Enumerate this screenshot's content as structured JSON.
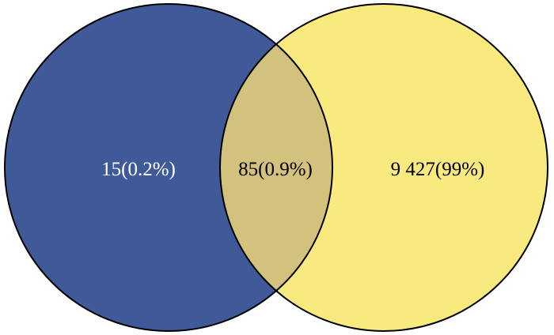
{
  "venn": {
    "left_set": {
      "color": "#405a99",
      "only_label": "15(0.2%)",
      "only_label_color": "#ffffff"
    },
    "right_set": {
      "color": "#f8ea7e",
      "only_label": "9 427(99%)",
      "only_label_color": "#000000"
    },
    "intersection": {
      "color": "#d3c27d",
      "label": "85(0.9%)",
      "label_color": "#000000"
    },
    "outline_color": "#000000"
  }
}
